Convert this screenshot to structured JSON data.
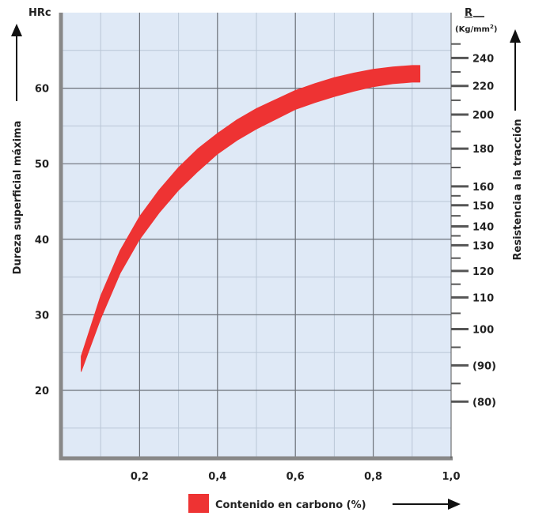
{
  "chart_data": {
    "type": "area",
    "title": "",
    "xlabel": "Contenido en carbono (%)",
    "ylabel": "Dureza superficial máxima",
    "ylabel_unit": "HRc",
    "y2label": "Resistencia a la tracción",
    "y2label_unit_symbol": "R",
    "y2label_unit": "(Kg/mm",
    "y2label_unit_sup": "2",
    "y2label_unit_close": ")",
    "xlim": [
      0,
      1.0
    ],
    "ylim": [
      11,
      70
    ],
    "x_ticks": [
      "0,2",
      "0,4",
      "0,6",
      "0,8",
      "1,0"
    ],
    "y_ticks": [
      "20",
      "30",
      "40",
      "50",
      "60"
    ],
    "y2_ticks": [
      {
        "label": "240",
        "hrc": 64
      },
      {
        "label": "220",
        "hrc": 60.3
      },
      {
        "label": "200",
        "hrc": 56.5
      },
      {
        "label": "180",
        "hrc": 52
      },
      {
        "label": "160",
        "hrc": 47
      },
      {
        "label": "150",
        "hrc": 44.5
      },
      {
        "label": "140",
        "hrc": 41.7
      },
      {
        "label": "130",
        "hrc": 39.2
      },
      {
        "label": "120",
        "hrc": 35.8
      },
      {
        "label": "110",
        "hrc": 32.3
      },
      {
        "label": "100",
        "hrc": 28.1
      },
      {
        "label": "(90)",
        "hrc": 23.3
      },
      {
        "label": "(80)",
        "hrc": 18.5
      }
    ],
    "grid": true,
    "series": [
      {
        "color": "#ee3333",
        "x": [
          0.05,
          0.1,
          0.15,
          0.2,
          0.25,
          0.3,
          0.35,
          0.4,
          0.45,
          0.5,
          0.55,
          0.6,
          0.65,
          0.7,
          0.75,
          0.8,
          0.85,
          0.9,
          0.92
        ],
        "upper": [
          24.5,
          32.5,
          38.5,
          43.0,
          46.5,
          49.5,
          52.0,
          54.0,
          55.8,
          57.3,
          58.5,
          59.7,
          60.6,
          61.4,
          62.0,
          62.5,
          62.8,
          63.0,
          63.0
        ],
        "lower": [
          22.5,
          29.5,
          35.5,
          40.0,
          43.5,
          46.5,
          49.0,
          51.3,
          53.1,
          54.6,
          55.9,
          57.2,
          58.1,
          58.9,
          59.6,
          60.2,
          60.6,
          60.8,
          60.8
        ]
      }
    ]
  }
}
